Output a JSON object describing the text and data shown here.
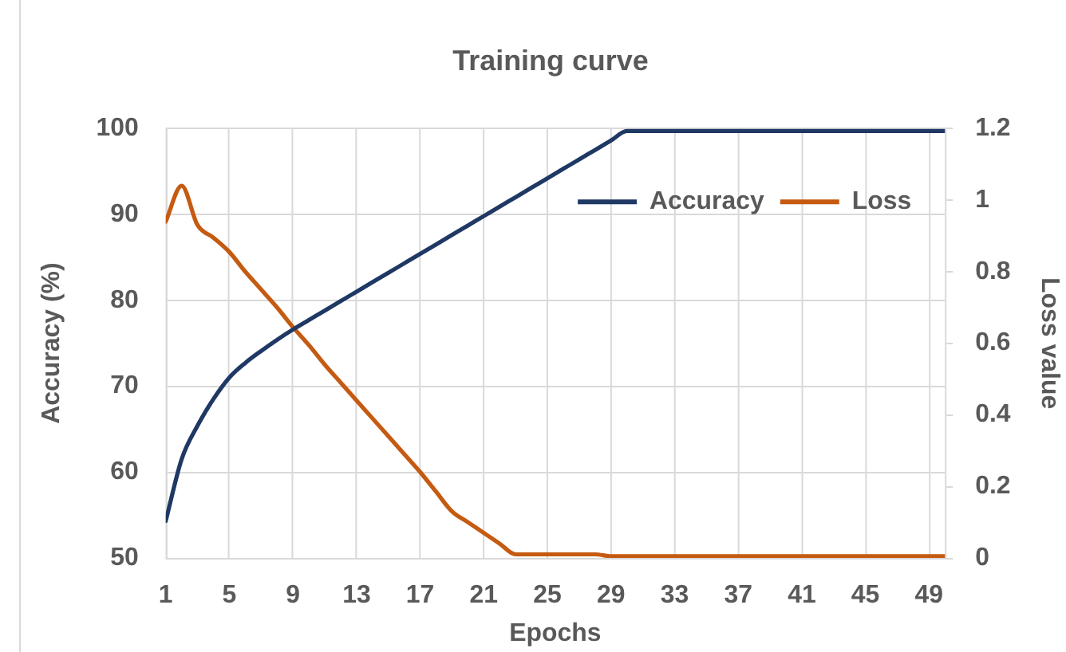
{
  "chart_data": {
    "type": "line",
    "title": "Training curve",
    "xlabel": "Epochs",
    "ylabel": "Accuracy (%)",
    "y2label": "Loss value",
    "x": [
      1,
      2,
      3,
      4,
      5,
      6,
      7,
      8,
      9,
      10,
      11,
      12,
      13,
      14,
      15,
      16,
      17,
      18,
      19,
      20,
      21,
      22,
      23,
      24,
      25,
      26,
      27,
      28,
      29,
      30,
      31,
      32,
      33,
      34,
      35,
      36,
      37,
      38,
      39,
      40,
      41,
      42,
      43,
      44,
      45,
      46,
      47,
      48,
      49,
      50
    ],
    "xlim": [
      1,
      50
    ],
    "xticks": [
      1,
      5,
      9,
      13,
      17,
      21,
      25,
      29,
      33,
      37,
      41,
      45,
      49
    ],
    "ylim": [
      50,
      100
    ],
    "yticks": [
      50,
      60,
      70,
      80,
      90,
      100
    ],
    "y2lim": [
      0,
      1.2
    ],
    "y2ticks": [
      0,
      0.2,
      0.4,
      0.6,
      0.8,
      1,
      1.2
    ],
    "grid": true,
    "legend": "top right",
    "marker": "none",
    "line_style": "solid",
    "series": [
      {
        "name": "Accuracy",
        "color": "#1f3864",
        "values": [
          54.3,
          61.5,
          65.4,
          68.5,
          71.0,
          72.7,
          74.1,
          75.4,
          76.6,
          77.7,
          78.8,
          79.9,
          81.0,
          82.1,
          83.2,
          84.3,
          85.4,
          86.5,
          87.6,
          88.7,
          89.8,
          90.9,
          92.0,
          93.1,
          94.2,
          95.3,
          96.4,
          97.5,
          98.6,
          99.7,
          99.7,
          99.7,
          99.7,
          99.7,
          99.7,
          99.7,
          99.7,
          99.7,
          99.7,
          99.7,
          99.7,
          99.7,
          99.7,
          99.7,
          99.7,
          99.7,
          99.7,
          99.7,
          99.7,
          99.7
        ]
      },
      {
        "name": "Loss",
        "color": "#c55a11",
        "axis": "y2",
        "values": [
          0.94,
          1.04,
          0.93,
          0.895,
          0.855,
          0.8,
          0.75,
          0.7,
          0.645,
          0.595,
          0.54,
          0.49,
          0.44,
          0.39,
          0.34,
          0.29,
          0.24,
          0.185,
          0.13,
          0.1,
          0.07,
          0.04,
          0.01,
          0.01,
          0.01,
          0.01,
          0.01,
          0.01,
          0.005,
          0.005,
          0.005,
          0.005,
          0.005,
          0.005,
          0.005,
          0.005,
          0.005,
          0.005,
          0.005,
          0.005,
          0.005,
          0.005,
          0.005,
          0.005,
          0.005,
          0.005,
          0.005,
          0.005,
          0.005,
          0.005
        ]
      }
    ]
  }
}
